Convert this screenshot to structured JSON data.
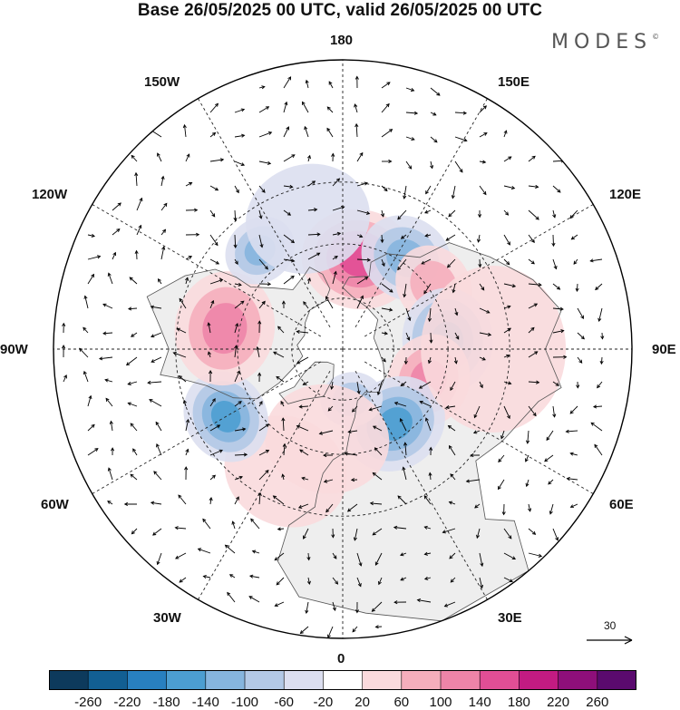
{
  "title": "Base 26/05/2025 00 UTC, valid 26/05/2025 00 UTC",
  "brand": {
    "name": "MODES",
    "mark": "©"
  },
  "longitude_labels": {
    "lon_180": "180",
    "lon_150e": "150E",
    "lon_120e": "120E",
    "lon_90e": "90E",
    "lon_60e": "60E",
    "lon_30e": "30E",
    "lon_0": "0",
    "lon_30w": "30W",
    "lon_60w": "60W",
    "lon_90w": "90W",
    "lon_120w": "120W",
    "lon_150w": "150W"
  },
  "wind_reference": {
    "value": "30"
  },
  "colorbar": {
    "ticks": [
      "-260",
      "-220",
      "-180",
      "-140",
      "-100",
      "-60",
      "-20",
      "20",
      "60",
      "100",
      "140",
      "180",
      "220",
      "260"
    ],
    "colors": [
      "#0d3a5c",
      "#125f93",
      "#2880c0",
      "#4c9ed1",
      "#86b5de",
      "#b3c9e6",
      "#dcdff0",
      "#ffffff",
      "#fadadd",
      "#f5aebc",
      "#ee84a8",
      "#e14e95",
      "#c21b82",
      "#8e0f7a",
      "#5a0a6e"
    ]
  },
  "map": {
    "projection": "north polar stereographic",
    "centre_lon_up": 180,
    "anomalies": [
      {
        "lon": 170,
        "lat": 55,
        "value": 160,
        "r": 55
      },
      {
        "lon": 145,
        "lat": 48,
        "value": -140,
        "r": 45
      },
      {
        "lon": 125,
        "lat": 48,
        "value": 110,
        "r": 40
      },
      {
        "lon": 95,
        "lat": 50,
        "value": -180,
        "r": 50
      },
      {
        "lon": 70,
        "lat": 55,
        "value": 150,
        "r": 45
      },
      {
        "lon": 35,
        "lat": 55,
        "value": -160,
        "r": 50
      },
      {
        "lon": 10,
        "lat": 70,
        "value": -100,
        "r": 30
      },
      {
        "lon": -10,
        "lat": 55,
        "value": 60,
        "r": 60
      },
      {
        "lon": -25,
        "lat": 40,
        "value": 70,
        "r": 60
      },
      {
        "lon": -60,
        "lat": 40,
        "value": -160,
        "r": 45
      },
      {
        "lon": -100,
        "lat": 45,
        "value": 150,
        "r": 55
      },
      {
        "lon": -140,
        "lat": 42,
        "value": -120,
        "r": 35
      },
      {
        "lon": -165,
        "lat": 40,
        "value": -50,
        "r": 60
      },
      {
        "lon": 90,
        "lat": 35,
        "value": 40,
        "r": 80
      }
    ]
  }
}
